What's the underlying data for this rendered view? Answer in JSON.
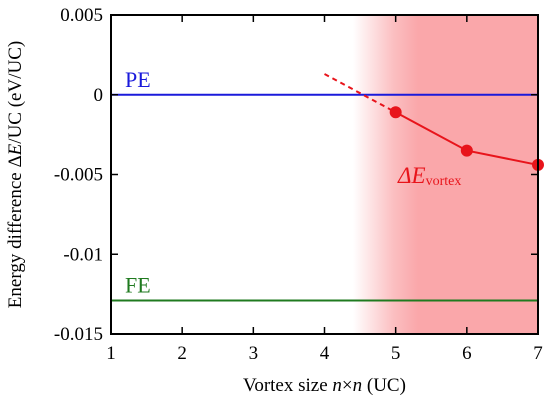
{
  "chart_data": {
    "type": "line",
    "xlim": [
      1,
      7
    ],
    "ylim": [
      -0.015,
      0.005
    ],
    "x_ticks": [
      "1",
      "2",
      "3",
      "4",
      "5",
      "6",
      "7"
    ],
    "y_ticks": [
      "0.005",
      "0",
      "-0.005",
      "-0.01",
      "-0.015"
    ],
    "y_tick_values": [
      0.005,
      0,
      -0.005,
      -0.01,
      -0.015
    ],
    "xlabel": {
      "pre": "Vortex size ",
      "n1": "n",
      "times": "×",
      "n2": "n",
      "post": " (UC)"
    },
    "ylabel": {
      "pre": "Energy difference Δ",
      "var": "E",
      "post": "/UC (eV/UC)"
    },
    "grid": false,
    "reference_lines": [
      {
        "name": "PE",
        "y": 0,
        "color": "#1a1adb"
      },
      {
        "name": "FE",
        "y": -0.0129,
        "color": "#1f7a1f"
      }
    ],
    "series": [
      {
        "label_main": "ΔE",
        "label_sub": "vortex",
        "color": "#e8141b",
        "x": [
          5,
          6,
          7
        ],
        "y": [
          -0.0011,
          -0.0035,
          -0.0044
        ],
        "extrapolation": {
          "x": [
            4,
            5
          ],
          "y": [
            0.0013,
            -0.0011
          ]
        }
      }
    ],
    "shaded_region": {
      "x_start": 4.4,
      "x_end": 7,
      "color": "#f88a8e"
    }
  }
}
